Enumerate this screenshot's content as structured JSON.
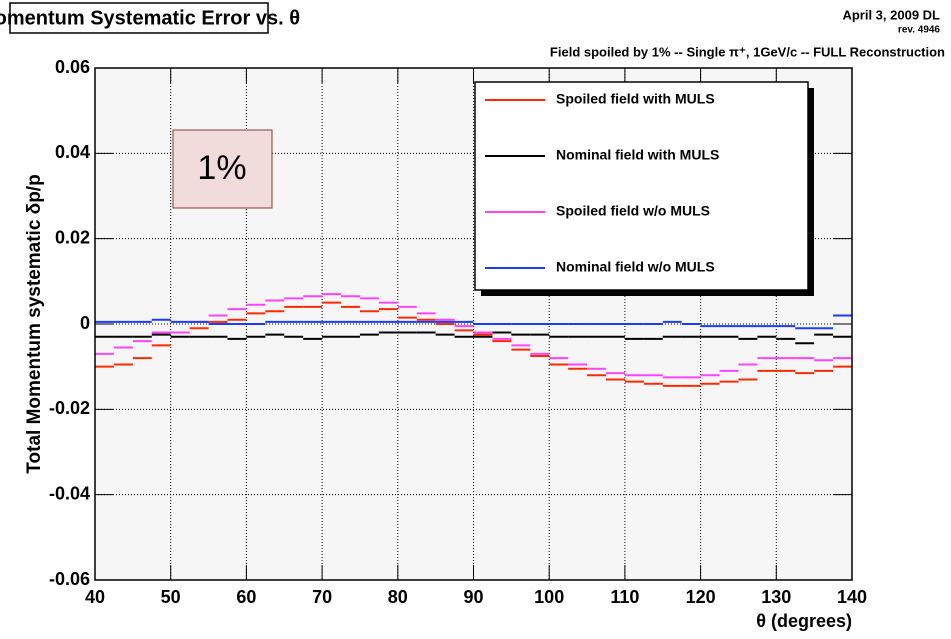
{
  "chart_data": {
    "type": "histogram",
    "title": "Momentum Systematic Error vs. θ",
    "date": "April 3, 2009 DL",
    "revision": "rev. 4946",
    "subtitle": "Field spoiled by 1%  --  Single π⁺, 1GeV/c  --  FULL Reconstruction",
    "x_label": "θ (degrees)",
    "y_label": "Total Momentum systematic δp/p",
    "annotation": "1%",
    "xlim": [
      40,
      140
    ],
    "ylim": [
      -0.06,
      0.06
    ],
    "xticks": [
      40,
      50,
      60,
      70,
      80,
      90,
      100,
      110,
      120,
      130,
      140
    ],
    "yticks": [
      -0.06,
      -0.04,
      -0.02,
      0,
      0.02,
      0.04,
      0.06
    ],
    "grid": true,
    "legend": "top-right",
    "bins": [
      40,
      42.5,
      45,
      47.5,
      50,
      52.5,
      55,
      57.5,
      60,
      62.5,
      65,
      67.5,
      70,
      72.5,
      75,
      77.5,
      80,
      82.5,
      85,
      87.5,
      90,
      92.5,
      95,
      97.5,
      100,
      102.5,
      105,
      107.5,
      110,
      112.5,
      115,
      117.5,
      120,
      122.5,
      125,
      127.5,
      130,
      132.5,
      135,
      137.5,
      140
    ],
    "series": [
      {
        "name": "Spoiled field with MULS",
        "color": "#ff2a00",
        "values": [
          -0.01,
          -0.0095,
          -0.008,
          -0.005,
          -0.002,
          -0.001,
          0.0005,
          0.001,
          0.0025,
          0.003,
          0.004,
          0.004,
          0.005,
          0.004,
          0.003,
          0.0035,
          0.0015,
          0.001,
          0.0,
          -0.0015,
          -0.0025,
          -0.004,
          -0.006,
          -0.0075,
          -0.0095,
          -0.0105,
          -0.012,
          -0.013,
          -0.0135,
          -0.014,
          -0.0145,
          -0.0145,
          -0.014,
          -0.0135,
          -0.013,
          -0.011,
          -0.011,
          -0.0115,
          -0.011,
          -0.01
        ]
      },
      {
        "name": "Nominal field with MULS",
        "color": "#000000",
        "values": [
          -0.003,
          -0.003,
          -0.003,
          -0.0025,
          -0.003,
          -0.003,
          -0.003,
          -0.0035,
          -0.003,
          -0.0025,
          -0.003,
          -0.0035,
          -0.003,
          -0.003,
          -0.0025,
          -0.002,
          -0.002,
          -0.002,
          -0.0025,
          -0.003,
          -0.003,
          -0.002,
          -0.0025,
          -0.0025,
          -0.003,
          -0.003,
          -0.003,
          -0.003,
          -0.0035,
          -0.0035,
          -0.003,
          -0.003,
          -0.003,
          -0.003,
          -0.0035,
          -0.003,
          -0.0035,
          -0.0045,
          -0.0025,
          -0.003
        ]
      },
      {
        "name": "Spoiled field w/o MULS",
        "color": "#ff44ff",
        "values": [
          -0.007,
          -0.0055,
          -0.004,
          -0.002,
          -0.002,
          0.0005,
          0.002,
          0.0035,
          0.0045,
          0.0055,
          0.006,
          0.0065,
          0.007,
          0.0065,
          0.006,
          0.005,
          0.004,
          0.0025,
          0.001,
          -0.0005,
          -0.002,
          -0.0035,
          -0.005,
          -0.007,
          -0.008,
          -0.0095,
          -0.0105,
          -0.0115,
          -0.012,
          -0.012,
          -0.0125,
          -0.0125,
          -0.012,
          -0.011,
          -0.0095,
          -0.008,
          -0.008,
          -0.008,
          -0.0085,
          -0.008
        ]
      },
      {
        "name": "Nominal field w/o MULS",
        "color": "#1a3cff",
        "values": [
          0.0005,
          0.0005,
          0.0005,
          0.001,
          0.0005,
          0.0005,
          0,
          0,
          0,
          0.0005,
          0.0005,
          0.0005,
          0.0005,
          0.0005,
          0.0005,
          0.0005,
          0.0005,
          0.0005,
          0.0005,
          0.0005,
          0,
          0,
          0,
          0,
          0,
          0,
          0,
          0,
          0,
          0,
          0.0005,
          0,
          -0.0005,
          -0.0005,
          -0.0005,
          -0.0005,
          -0.0005,
          -0.001,
          -0.001,
          0.002
        ]
      }
    ]
  }
}
